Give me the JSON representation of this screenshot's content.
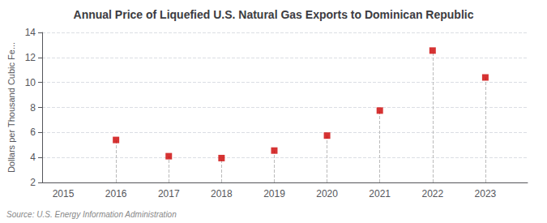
{
  "chart_data": {
    "type": "scatter",
    "title": "Annual Price of Liquefied U.S. Natural Gas Exports to Dominican Republic",
    "ylabel": "Dollars per Thousand Cubic Fe...",
    "source": "Source: U.S. Energy Information Administration",
    "x": [
      2016,
      2017,
      2018,
      2019,
      2020,
      2021,
      2022,
      2023
    ],
    "values": [
      5.4,
      4.1,
      3.95,
      4.55,
      5.75,
      7.75,
      12.55,
      10.4
    ],
    "xlim": [
      2014.6,
      2023.8
    ],
    "xticks": [
      2015,
      2016,
      2017,
      2018,
      2019,
      2020,
      2021,
      2022,
      2023
    ],
    "ylim": [
      2,
      14
    ],
    "yticks": [
      2,
      4,
      6,
      8,
      10,
      12,
      14
    ],
    "color": "#cc0000",
    "marker": "square",
    "grid": true
  }
}
